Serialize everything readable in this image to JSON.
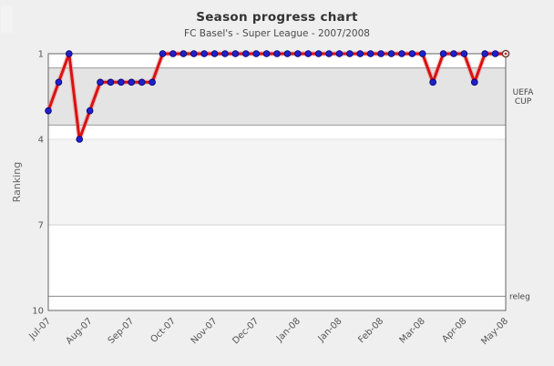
{
  "page": {
    "title": "Season progress chart",
    "subtitle": "FC Basel's - Super League - 2007/2008"
  },
  "chart_data": {
    "type": "line",
    "title": "Season progress chart",
    "subtitle": "FC Basel's - Super League - 2007/2008",
    "ylabel": "Ranking",
    "ylim": [
      1,
      10
    ],
    "y_inverted": true,
    "y_ticks": [
      1,
      4,
      7,
      10
    ],
    "x_tick_labels": [
      "Jul-07",
      "Aug-07",
      "Sep-07",
      "Oct-07",
      "Nov-07",
      "Dec-07",
      "Jan-08",
      "Jan-08",
      "Feb-08",
      "Mar-08",
      "Apr-08",
      "May-08"
    ],
    "grid": "horizontal-zones",
    "legend": "none",
    "series": [
      {
        "name": "ranking",
        "values": [
          3,
          2,
          1,
          4,
          3,
          2,
          2,
          2,
          2,
          2,
          2,
          1,
          1,
          1,
          1,
          1,
          1,
          1,
          1,
          1,
          1,
          1,
          1,
          1,
          1,
          1,
          1,
          1,
          1,
          1,
          1,
          1,
          1,
          1,
          1,
          1,
          1,
          2,
          1,
          1,
          1,
          2,
          1,
          1,
          1
        ]
      }
    ],
    "current_point": {
      "index": 44,
      "rank": 1,
      "marker": "open-ring"
    },
    "bands": [
      {
        "from": 1,
        "to": 1.5,
        "color": "#ffffff"
      },
      {
        "from": 1.5,
        "to": 3.5,
        "color": "#e4e4e4"
      },
      {
        "from": 3.5,
        "to": 4,
        "color": "#ffffff"
      },
      {
        "from": 4,
        "to": 7,
        "color": "#f4f4f4"
      },
      {
        "from": 7,
        "to": 10,
        "color": "#ffffff"
      }
    ],
    "gridlines": [
      {
        "at": 1.5,
        "color": "#9a9a9a"
      },
      {
        "at": 3.5,
        "color": "#9a9a9a"
      },
      {
        "at": 4,
        "color": "#e0e0e0"
      },
      {
        "at": 7,
        "color": "#d2d2d2"
      },
      {
        "at": 9.5,
        "color": "#8a8a8a"
      }
    ],
    "annotations": [
      {
        "text_lines": [
          "UEFA",
          "CUP"
        ],
        "at_rank": 2.5,
        "side": "right"
      },
      {
        "text_lines": [
          "releg"
        ],
        "at_rank": 9.5,
        "side": "right"
      }
    ],
    "colors": {
      "line": "#d91111",
      "line_glow": "#ea8f8f",
      "marker_fill": "#2121c8",
      "marker_edge": "#00006e",
      "current_ring": "#663333",
      "current_center": "#cc2222",
      "plot_border": "#666666",
      "background": "#efefef",
      "tick_text": "#555555",
      "annotation_text": "#444444"
    }
  }
}
